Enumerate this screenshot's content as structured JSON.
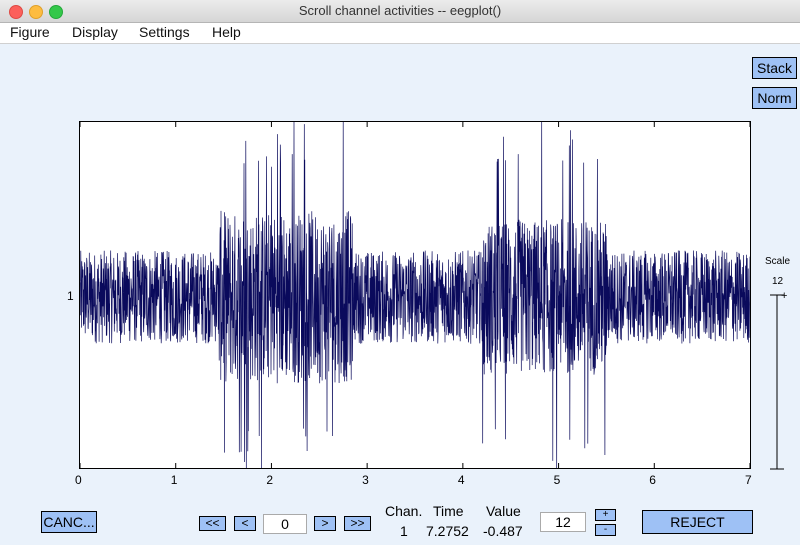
{
  "window": {
    "title": "Scroll channel activities -- eegplot()"
  },
  "menu": [
    "Figure",
    "Display",
    "Settings",
    "Help"
  ],
  "buttons": {
    "stack": "Stack",
    "norm": "Norm",
    "cancel": "CANC...",
    "first": "<<",
    "prev": "<",
    "next": ">",
    "last": ">>",
    "reject": "REJECT",
    "scale_plus": "+",
    "scale_minus": "-"
  },
  "position_field": "0",
  "scale_field": "12",
  "scale": {
    "label": "Scale",
    "value": "12"
  },
  "channel_label": "1",
  "readout": {
    "headers": {
      "chan": "Chan.",
      "time": "Time",
      "value": "Value"
    },
    "chan": "1",
    "time": "7.2752",
    "value": "-0.487"
  },
  "chart_data": {
    "type": "line",
    "x_ticks": [
      "0",
      "1",
      "2",
      "3",
      "4",
      "5",
      "6",
      "7"
    ],
    "xlim": [
      0,
      7
    ],
    "y_tick_labels": [
      "1"
    ],
    "grid": false,
    "series": [
      {
        "color": "#0a0a5c"
      }
    ]
  }
}
